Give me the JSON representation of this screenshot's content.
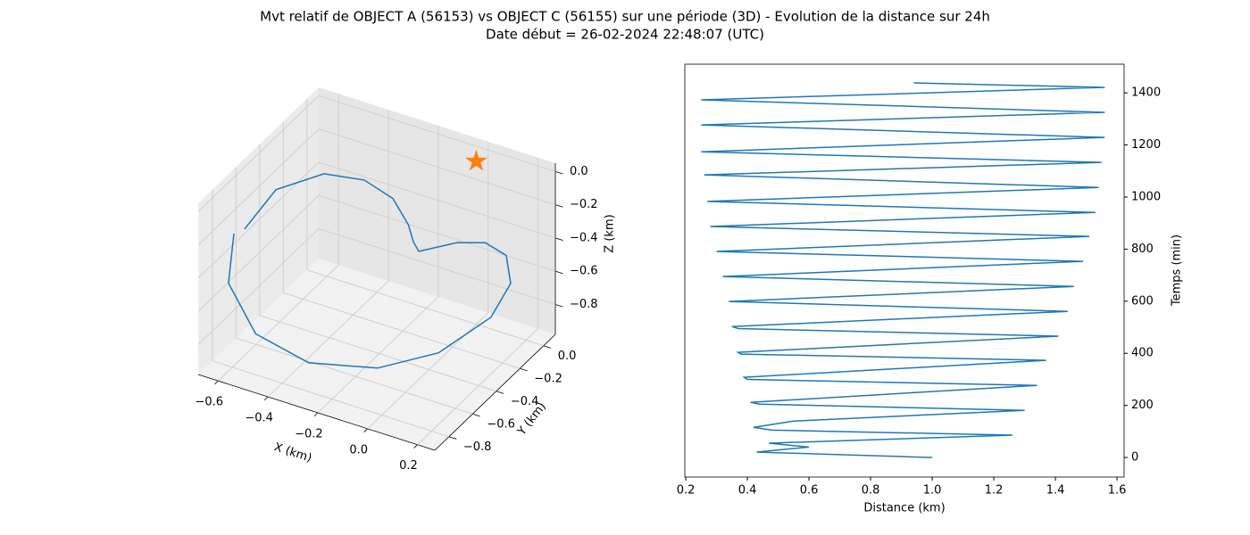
{
  "title": "Mvt relatif de OBJECT A (56153) vs OBJECT C (56155) sur une période (3D) - Evolution de la distance sur 24h",
  "subtitle": "Date début = 26-02-2024 22:48:07 (UTC)",
  "chart_data": [
    {
      "type": "line3d",
      "xlabel": "X (km)",
      "ylabel": "Y (km)",
      "zlabel": "Z (km)",
      "xlim": [
        -0.68,
        0.27
      ],
      "ylim": [
        -0.92,
        0.1
      ],
      "zlim": [
        -0.98,
        0.05
      ],
      "xticks": [
        {
          "value": -0.6,
          "label": "−0.6"
        },
        {
          "value": -0.4,
          "label": "−0.4"
        },
        {
          "value": -0.2,
          "label": "−0.2"
        },
        {
          "value": 0,
          "label": "0.0"
        },
        0.2
      ],
      "yticks": [
        {
          "value": 0,
          "label": "0.0"
        },
        {
          "value": -0.2,
          "label": "−0.2"
        },
        {
          "value": -0.4,
          "label": "−0.4"
        },
        {
          "value": -0.6,
          "label": "−0.6"
        },
        {
          "value": -0.8,
          "label": "−0.8"
        }
      ],
      "zticks": [
        {
          "value": 0,
          "label": "0.0"
        },
        {
          "value": -0.2,
          "label": "−0.2"
        },
        {
          "value": -0.4,
          "label": "−0.4"
        },
        {
          "value": -0.6,
          "label": "−0.6"
        },
        {
          "value": -0.8,
          "label": "−0.8"
        }
      ],
      "grid": true,
      "series": [
        {
          "color": "#1f77b4",
          "x": [
            -0.585,
            -0.607,
            -0.522,
            -0.357,
            -0.129,
            0.067,
            0.229,
            0.26,
            0.218,
            0.109,
            -0.005,
            -0.157,
            -0.178,
            -0.199,
            -0.237,
            -0.304,
            -0.417,
            -0.537,
            -0.591
          ],
          "y": [
            -0.818,
            -0.818,
            -0.767,
            -0.665,
            -0.563,
            -0.461,
            -0.359,
            -0.257,
            -0.206,
            -0.155,
            -0.155,
            -0.155,
            -0.155,
            -0.155,
            -0.206,
            -0.308,
            -0.41,
            -0.563,
            -0.716
          ],
          "z": [
            -0.156,
            -0.465,
            -0.764,
            -0.929,
            -0.921,
            -0.805,
            -0.583,
            -0.434,
            -0.321,
            -0.331,
            -0.386,
            -0.511,
            -0.468,
            -0.372,
            -0.197,
            -0.048,
            0.005,
            -0.043,
            -0.202
          ]
        }
      ],
      "marker": {
        "color": "#ff7f0e",
        "x": [
          0
        ],
        "y": [
          0
        ],
        "z": [
          0
        ]
      }
    },
    {
      "type": "line",
      "xlabel": "Distance (km)",
      "ylabel": "Temps (min)",
      "xlim": [
        0.197,
        1.623
      ],
      "ylim": [
        -75,
        1510
      ],
      "xticks": [
        0.2,
        0.4,
        0.6,
        0.8,
        {
          "value": 1,
          "label": "1.0"
        },
        1.2,
        1.4,
        1.6
      ],
      "yticks": [
        0,
        200,
        400,
        600,
        800,
        1000,
        1200,
        1400
      ],
      "color": "#1f77b4",
      "x": [
        1.0,
        0.43,
        0.6,
        0.47,
        1.26,
        0.48,
        0.42,
        0.55,
        1.3,
        0.44,
        0.41,
        1.34,
        0.4,
        0.39,
        1.37,
        0.38,
        0.37,
        1.41,
        0.37,
        0.35,
        1.44,
        0.34,
        1.46,
        0.32,
        1.49,
        0.3,
        1.51,
        0.28,
        1.53,
        0.27,
        1.54,
        0.26,
        1.55,
        0.25,
        1.56,
        0.25,
        1.56,
        0.25,
        1.56,
        0.94
      ],
      "values": [
        0,
        21,
        40,
        55,
        86,
        105,
        116,
        140,
        181,
        205,
        212,
        277,
        300,
        308,
        373,
        397,
        404,
        466,
        495,
        503,
        561,
        599,
        657,
        695,
        753,
        791,
        849,
        887,
        941,
        983,
        1037,
        1085,
        1133,
        1174,
        1229,
        1277,
        1325,
        1373,
        1421,
        1438
      ]
    }
  ]
}
